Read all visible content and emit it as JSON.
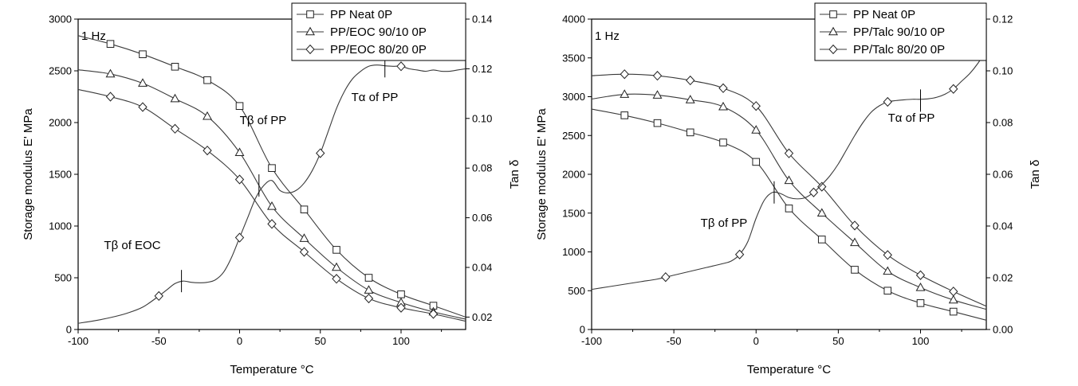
{
  "chart_data": [
    {
      "type": "line",
      "freq_label": "1 Hz",
      "xlabel": "Temperature °C",
      "ylabel": "Storage modulus E' MPa",
      "y2label": "Tan δ",
      "xlim": [
        -100,
        140
      ],
      "ylim": [
        0,
        3000
      ],
      "y2lim": [
        0.015,
        0.14
      ],
      "xticks": [
        -100,
        -50,
        0,
        50,
        100
      ],
      "yticks": [
        0,
        500,
        1000,
        1500,
        2000,
        2500,
        3000
      ],
      "y2ticks": [
        0.02,
        0.04,
        0.06,
        0.08,
        0.1,
        0.12,
        0.14
      ],
      "legend_position": "top-right",
      "series": [
        {
          "name": "PP Neat 0P",
          "marker": "square",
          "axis": "left",
          "x": [
            -100,
            -80,
            -60,
            -40,
            -20,
            0,
            20,
            40,
            60,
            80,
            100,
            120,
            140
          ],
          "y": [
            2840,
            2760,
            2660,
            2540,
            2410,
            2160,
            1560,
            1160,
            770,
            500,
            340,
            230,
            120
          ]
        },
        {
          "name": "PP/EOC 90/10 0P",
          "marker": "triangle",
          "axis": "left",
          "x": [
            -100,
            -80,
            -60,
            -40,
            -20,
            0,
            20,
            40,
            60,
            80,
            100,
            120,
            140
          ],
          "y": [
            2510,
            2470,
            2380,
            2230,
            2060,
            1710,
            1190,
            880,
            600,
            380,
            260,
            170,
            100
          ]
        },
        {
          "name": "PP/EOC 80/20 0P",
          "marker": "diamond",
          "axis": "left",
          "x": [
            -100,
            -80,
            -60,
            -40,
            -20,
            0,
            20,
            40,
            60,
            80,
            100,
            120,
            140
          ],
          "y": [
            2320,
            2250,
            2150,
            1940,
            1730,
            1450,
            1020,
            750,
            490,
            300,
            210,
            150,
            80
          ]
        },
        {
          "name": "",
          "marker": "diamond",
          "axis": "right",
          "marker_x": [
            -50,
            0,
            50,
            100
          ],
          "x": [
            -100,
            -90,
            -80,
            -70,
            -60,
            -50,
            -45,
            -40,
            -35,
            -30,
            -25,
            -20,
            -15,
            -10,
            -5,
            0,
            5,
            10,
            15,
            20,
            25,
            30,
            35,
            40,
            45,
            50,
            55,
            60,
            65,
            70,
            75,
            80,
            85,
            90,
            95,
            100,
            105,
            110,
            115,
            120,
            125,
            130,
            135,
            140
          ],
          "y": [
            0.0175,
            0.0185,
            0.0198,
            0.0215,
            0.024,
            0.0285,
            0.031,
            0.0335,
            0.0345,
            0.034,
            0.0338,
            0.034,
            0.035,
            0.038,
            0.044,
            0.052,
            0.06,
            0.068,
            0.073,
            0.075,
            0.071,
            0.07,
            0.071,
            0.074,
            0.079,
            0.086,
            0.095,
            0.104,
            0.111,
            0.116,
            0.119,
            0.121,
            0.1215,
            0.1212,
            0.121,
            0.121,
            0.12,
            0.1195,
            0.119,
            0.1195,
            0.119,
            0.119,
            0.1195,
            0.12
          ]
        }
      ],
      "annotations": [
        {
          "text": "Tα of PP",
          "x": 90,
          "y2": 0.121
        },
        {
          "text": "Tβ of PP",
          "x": 12,
          "y2": 0.073
        },
        {
          "text": "Tβ of EOC",
          "x": -36,
          "y2": 0.0345
        }
      ]
    },
    {
      "type": "line",
      "freq_label": "1 Hz",
      "xlabel": "Temperature °C",
      "ylabel": "Storage modulus E' MPa",
      "y2label": "Tan δ",
      "xlim": [
        -100,
        140
      ],
      "ylim": [
        0,
        4000
      ],
      "y2lim": [
        0,
        0.12
      ],
      "xticks": [
        -100,
        -50,
        0,
        50,
        100
      ],
      "yticks": [
        0,
        500,
        1000,
        1500,
        2000,
        2500,
        3000,
        3500,
        4000
      ],
      "y2ticks": [
        0.0,
        0.02,
        0.04,
        0.06,
        0.08,
        0.1,
        0.12
      ],
      "legend_position": "top-right",
      "series": [
        {
          "name": "PP Neat 0P",
          "marker": "square",
          "axis": "left",
          "x": [
            -100,
            -80,
            -60,
            -40,
            -20,
            0,
            20,
            40,
            60,
            80,
            100,
            120,
            140
          ],
          "y": [
            2840,
            2760,
            2660,
            2540,
            2410,
            2160,
            1560,
            1160,
            770,
            500,
            340,
            230,
            120
          ]
        },
        {
          "name": "PP/Talc 90/10 0P",
          "marker": "triangle",
          "axis": "left",
          "x": [
            -100,
            -80,
            -60,
            -40,
            -20,
            0,
            20,
            40,
            60,
            80,
            100,
            120,
            140
          ],
          "y": [
            2970,
            3030,
            3020,
            2960,
            2870,
            2570,
            1920,
            1500,
            1120,
            750,
            540,
            380,
            260
          ]
        },
        {
          "name": "PP/Talc 80/20 0P",
          "marker": "diamond",
          "axis": "left",
          "x": [
            -100,
            -80,
            -60,
            -40,
            -20,
            0,
            20,
            40,
            60,
            80,
            100,
            120,
            140
          ],
          "y": [
            3270,
            3290,
            3270,
            3210,
            3110,
            2880,
            2270,
            1840,
            1340,
            960,
            700,
            490,
            300
          ]
        },
        {
          "name": "",
          "marker": "diamond",
          "axis": "right",
          "marker_x": [
            -55,
            -10,
            35,
            80,
            120
          ],
          "x": [
            -100,
            -90,
            -80,
            -70,
            -60,
            -50,
            -40,
            -30,
            -20,
            -15,
            -10,
            -5,
            0,
            5,
            10,
            15,
            20,
            25,
            30,
            35,
            40,
            45,
            50,
            55,
            60,
            65,
            70,
            75,
            80,
            85,
            90,
            95,
            100,
            105,
            110,
            115,
            120,
            125,
            130,
            135,
            140
          ],
          "y": [
            0.0155,
            0.0165,
            0.0175,
            0.0185,
            0.0195,
            0.021,
            0.0225,
            0.024,
            0.0255,
            0.0265,
            0.029,
            0.034,
            0.043,
            0.05,
            0.053,
            0.0525,
            0.051,
            0.0505,
            0.051,
            0.053,
            0.056,
            0.0595,
            0.064,
            0.0695,
            0.075,
            0.08,
            0.084,
            0.0865,
            0.088,
            0.0885,
            0.0888,
            0.089,
            0.089,
            0.0892,
            0.0898,
            0.091,
            0.093,
            0.096,
            0.099,
            0.103,
            0.108
          ]
        }
      ],
      "annotations": [
        {
          "text": "Tα of PP",
          "x": 100,
          "y2": 0.0885
        },
        {
          "text": "Tβ of PP",
          "x": 11,
          "y2": 0.053
        }
      ]
    }
  ]
}
